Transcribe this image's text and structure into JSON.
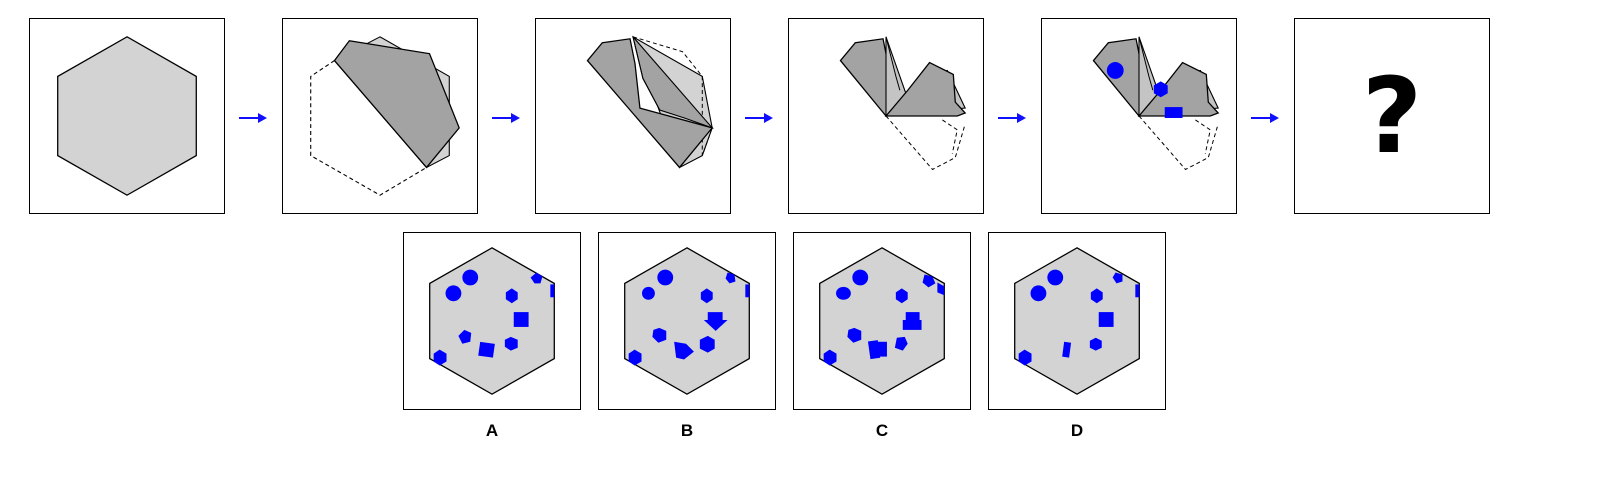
{
  "colors": {
    "paper": "#d3d3d3",
    "fold": "#a3a3a3",
    "hole": "#0000ff",
    "arrow": "#1010ff",
    "stroke": "#000000"
  },
  "question_mark": "?",
  "options": [
    {
      "label": "A"
    },
    {
      "label": "B"
    },
    {
      "label": "C"
    },
    {
      "label": "D"
    }
  ]
}
